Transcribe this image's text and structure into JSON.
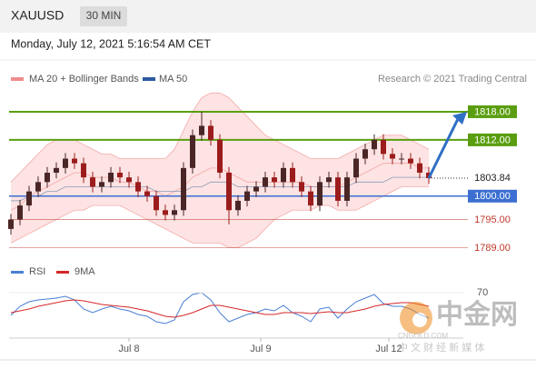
{
  "header": {
    "symbol": "XAUUSD",
    "timeframe": "30 MIN",
    "timestamp": "Monday, July 12, 2021 5:16:54 AM CET",
    "credit": "Research © 2021 Trading Central"
  },
  "chart_data": [
    {
      "type": "candlestick",
      "open": [
        1793,
        1795,
        1798,
        1801,
        1803,
        1805,
        1806,
        1808,
        1807,
        1804,
        1802,
        1803,
        1805,
        1804,
        1803,
        1801,
        1800,
        1797,
        1796,
        1797,
        1806,
        1813,
        1815,
        1812,
        1805,
        1797,
        1799,
        1801,
        1802,
        1804,
        1803,
        1806,
        1803,
        1801,
        1798,
        1803,
        1804,
        1799,
        1804,
        1808,
        1810,
        1812,
        1809,
        1808,
        1808,
        1807,
        1805
      ],
      "high": [
        1796.2,
        1799.2,
        1802.2,
        1804.2,
        1806.2,
        1807.2,
        1809.2,
        1809.2,
        1808.2,
        1805.2,
        1804.2,
        1806.2,
        1806.2,
        1805.2,
        1804.2,
        1802.2,
        1801.2,
        1798.2,
        1798.2,
        1807.2,
        1814.2,
        1818,
        1816.2,
        1813.2,
        1806.2,
        1800.2,
        1802.2,
        1803.2,
        1805.2,
        1805.2,
        1807.2,
        1807.2,
        1804.2,
        1802.2,
        1804.2,
        1805.2,
        1805.2,
        1805.2,
        1809.2,
        1811.2,
        1813.2,
        1813.2,
        1810.2,
        1809.2,
        1809.2,
        1808.2,
        1806.2
      ],
      "low": [
        1791.8,
        1793.8,
        1796.8,
        1799.8,
        1801.8,
        1803.8,
        1804.8,
        1805.8,
        1802.8,
        1800.8,
        1800.8,
        1801.8,
        1802.8,
        1801.8,
        1799.8,
        1798.8,
        1795.8,
        1794.8,
        1794.8,
        1795.8,
        1804.8,
        1811.8,
        1810.8,
        1803.8,
        1794,
        1795.8,
        1797.8,
        1799.8,
        1800.8,
        1801.8,
        1801.8,
        1801.8,
        1799.8,
        1796.8,
        1796.8,
        1801.8,
        1797.8,
        1797.8,
        1802.8,
        1806.8,
        1808.8,
        1807.8,
        1806.8,
        1806.8,
        1805.8,
        1803.8,
        1802.6
      ],
      "close": [
        1795,
        1798,
        1801,
        1803,
        1805,
        1806,
        1808,
        1807,
        1804,
        1802,
        1803,
        1805,
        1804,
        1803,
        1801,
        1800,
        1797,
        1796,
        1797,
        1806,
        1813,
        1815,
        1812,
        1805,
        1797,
        1799,
        1801,
        1802,
        1804,
        1803,
        1806,
        1803,
        1801,
        1798,
        1803,
        1804,
        1799,
        1804,
        1808,
        1810,
        1812,
        1809,
        1808,
        1808,
        1807,
        1805,
        1803.84
      ],
      "up_color": "#4a2626",
      "down_color": "#9b1c1c",
      "series": [
        {
          "name": "MA 20 + Bollinger Bands",
          "color": "#f08c8c",
          "band_color": "#fcdcdc",
          "values": [
            1797,
            1798,
            1800,
            1801,
            1802,
            1803,
            1804,
            1805,
            1805,
            1804,
            1804,
            1804,
            1803,
            1803,
            1802,
            1801,
            1801,
            1800,
            1801,
            1802,
            1804,
            1805,
            1806,
            1806,
            1805,
            1804,
            1803,
            1803,
            1803,
            1803,
            1803,
            1803,
            1803,
            1802,
            1802,
            1802,
            1802,
            1803,
            1804,
            1805,
            1806,
            1807,
            1807,
            1807,
            1807,
            1806,
            1806
          ],
          "upper": [
            1803,
            1805,
            1807,
            1809,
            1811,
            1812,
            1812,
            1812,
            1811,
            1810,
            1809,
            1809,
            1808,
            1808,
            1808,
            1808,
            1808,
            1808,
            1810,
            1814,
            1818,
            1821,
            1822,
            1822,
            1821,
            1819,
            1817,
            1815,
            1813,
            1812,
            1811,
            1810,
            1809,
            1808,
            1808,
            1808,
            1808,
            1809,
            1810,
            1811,
            1812,
            1813,
            1813,
            1813,
            1812,
            1811,
            1810
          ],
          "lower": [
            1790,
            1791,
            1792,
            1793,
            1794,
            1795,
            1796,
            1797,
            1797,
            1798,
            1798,
            1798,
            1798,
            1797,
            1796,
            1795,
            1794,
            1793,
            1792,
            1791,
            1790,
            1790,
            1790,
            1790,
            1789,
            1789,
            1790,
            1791,
            1793,
            1795,
            1796,
            1797,
            1797,
            1797,
            1798,
            1798,
            1797,
            1797,
            1797,
            1798,
            1799,
            1800,
            1801,
            1802,
            1802,
            1802,
            1802
          ]
        },
        {
          "name": "MA 50",
          "color": "#2c5aa0",
          "line_color": "#8a9bb8",
          "values": [
            1799,
            1799,
            1800,
            1800,
            1801,
            1801,
            1802,
            1802,
            1802,
            1802,
            1802,
            1802,
            1802,
            1802,
            1802,
            1802,
            1801,
            1801,
            1801,
            1801,
            1802,
            1802,
            1803,
            1803,
            1803,
            1802,
            1802,
            1802,
            1802,
            1802,
            1802,
            1802,
            1802,
            1802,
            1802,
            1802,
            1802,
            1802,
            1803,
            1803,
            1803,
            1803,
            1804,
            1804,
            1804,
            1804,
            1804
          ]
        }
      ],
      "levels": [
        {
          "value": 1818,
          "label": "1818.00",
          "color": "#5a9e10",
          "boxed": true
        },
        {
          "value": 1812,
          "label": "1812.00",
          "color": "#5a9e10",
          "boxed": true
        },
        {
          "value": 1800,
          "label": "1800.00",
          "color": "#3b6fd1",
          "boxed": true
        },
        {
          "value": 1795,
          "label": "1795.00",
          "color": "#c0392b",
          "boxed": false
        },
        {
          "value": 1789,
          "label": "1789.00",
          "color": "#c0392b",
          "boxed": false
        }
      ],
      "current_price": 1803.84,
      "arrow_color": "#2f6fc4",
      "xlim": [
        -0.2,
        49.8
      ],
      "ylim": [
        1786,
        1824
      ],
      "xticks": [
        {
          "value": 13,
          "label": "Jul 8"
        },
        {
          "value": 27.5,
          "label": "Jul 9"
        },
        {
          "value": 41.6,
          "label": "Jul 12"
        }
      ]
    },
    {
      "type": "line",
      "series": [
        {
          "name": "RSI",
          "color": "#4a7fd4",
          "values": [
            45,
            55,
            60,
            62,
            63,
            64,
            66,
            62,
            52,
            48,
            52,
            55,
            52,
            50,
            46,
            44,
            38,
            36,
            40,
            60,
            68,
            70,
            62,
            48,
            38,
            42,
            46,
            48,
            52,
            50,
            56,
            48,
            44,
            38,
            52,
            54,
            42,
            52,
            60,
            64,
            68,
            58,
            55,
            55,
            52,
            46,
            42
          ]
        },
        {
          "name": "9MA",
          "color": "#d62728",
          "values": [
            48,
            50,
            52,
            55,
            57,
            59,
            61,
            62,
            61,
            59,
            57,
            56,
            55,
            54,
            52,
            50,
            47,
            44,
            43,
            45,
            48,
            52,
            56,
            56,
            54,
            52,
            50,
            48,
            46,
            46,
            48,
            48,
            48,
            47,
            48,
            49,
            48,
            48,
            50,
            52,
            55,
            57,
            58,
            59,
            59,
            57,
            55
          ]
        }
      ],
      "ylim": [
        20,
        80
      ],
      "yticks": [
        70
      ]
    }
  ],
  "watermark": {
    "name": "中金网",
    "domain": "CNGOLD.COM",
    "tagline": "中 文 财 经 新 媒 体"
  }
}
